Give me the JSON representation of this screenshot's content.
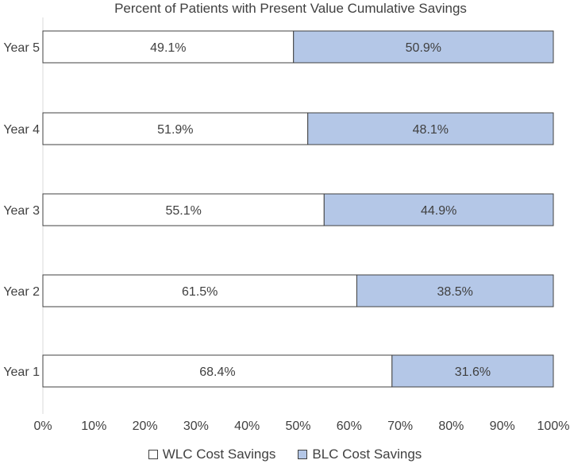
{
  "chart_data": {
    "type": "bar",
    "orientation": "horizontal",
    "stacked": true,
    "title": "Percent of Patients with Present Value Cumulative Savings",
    "xlabel": "",
    "ylabel": "",
    "categories": [
      "Year 5",
      "Year 4",
      "Year 3",
      "Year 2",
      "Year 1"
    ],
    "series": [
      {
        "name": "WLC Cost Savings",
        "values": [
          49.1,
          51.9,
          55.1,
          61.5,
          68.4
        ],
        "labels": [
          "49.1%",
          "51.9%",
          "55.1%",
          "61.5%",
          "68.4%"
        ],
        "color": "#ffffff"
      },
      {
        "name": "BLC Cost Savings",
        "values": [
          50.9,
          48.1,
          44.9,
          38.5,
          31.6
        ],
        "labels": [
          "50.9%",
          "48.1%",
          "44.9%",
          "38.5%",
          "31.6%"
        ],
        "color": "#b4c7e7"
      }
    ],
    "xlim": [
      0,
      100
    ],
    "xticks": [
      "0%",
      "10%",
      "20%",
      "30%",
      "40%",
      "50%",
      "60%",
      "70%",
      "80%",
      "90%",
      "100%"
    ],
    "grid": false,
    "legend_position": "bottom"
  },
  "colors": {
    "border": "#404040",
    "axis": "#d9d9d9",
    "text": "#404040"
  }
}
